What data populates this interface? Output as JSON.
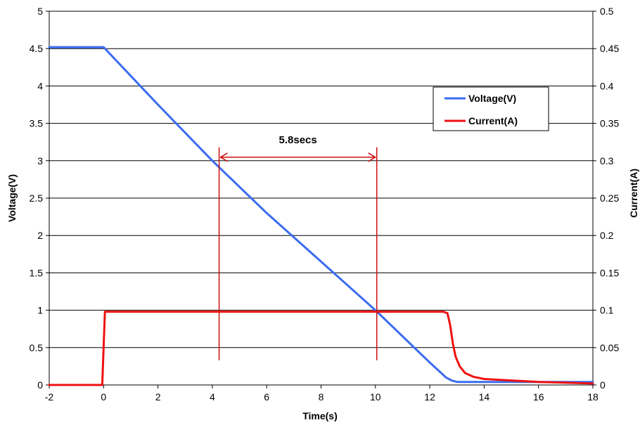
{
  "chart_data": {
    "type": "line",
    "title": "",
    "xlabel": "Time(s)",
    "ylabel": "Voltage(V)",
    "y2label": "Current(A)",
    "xlim": [
      -2,
      18
    ],
    "ylim": [
      0,
      5
    ],
    "y2lim": [
      0,
      0.5
    ],
    "x_ticks": [
      "-2",
      "0",
      "2",
      "4",
      "6",
      "8",
      "10",
      "12",
      "14",
      "16",
      "18"
    ],
    "y_ticks": [
      "0",
      "0.5",
      "1",
      "1.5",
      "2",
      "2.5",
      "3",
      "3.5",
      "4",
      "4.5",
      "5"
    ],
    "y2_ticks": [
      "0",
      "0.05",
      "0.1",
      "0.15",
      "0.2",
      "0.25",
      "0.3",
      "0.35",
      "0.4",
      "0.45",
      "0.5"
    ],
    "grid": "horizontal",
    "legend_position": "right",
    "series": [
      {
        "name": "Voltage(V)",
        "axis": "left",
        "color": "#3a6cf0",
        "x": [
          -2,
          0,
          2,
          4,
          6,
          8,
          10,
          12,
          12.6,
          12.8,
          13,
          14,
          16,
          18
        ],
        "y": [
          4.52,
          4.52,
          3.75,
          3.0,
          2.3,
          1.65,
          1.0,
          0.3,
          0.1,
          0.06,
          0.04,
          0.04,
          0.04,
          0.04
        ]
      },
      {
        "name": "Current(A)",
        "axis": "right",
        "color": "#ee1111",
        "x": [
          -2,
          -0.05,
          0,
          0.05,
          2,
          6,
          10,
          12.5,
          12.65,
          12.75,
          12.85,
          12.95,
          13.1,
          13.3,
          13.6,
          14,
          15,
          16,
          17,
          18
        ],
        "y": [
          0,
          0,
          0.05,
          0.098,
          0.098,
          0.098,
          0.098,
          0.098,
          0.096,
          0.08,
          0.055,
          0.038,
          0.025,
          0.016,
          0.011,
          0.008,
          0.006,
          0.004,
          0.003,
          0.002
        ]
      }
    ],
    "annotations": {
      "text": "5.8secs",
      "x_start": 4.25,
      "x_end": 10.05,
      "arrow_y": 3.0,
      "line_y_range": [
        0.33,
        3.18
      ],
      "color": "#cc1111"
    }
  }
}
